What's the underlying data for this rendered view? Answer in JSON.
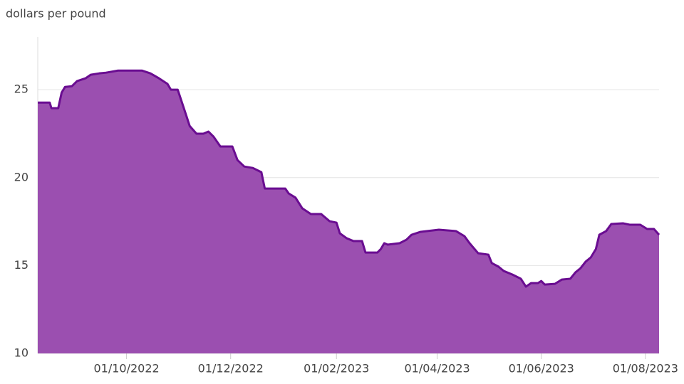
{
  "chart_data": {
    "type": "area",
    "y_axis_label": "dollars per pound",
    "x": [
      "2022-08-10",
      "2022-08-17",
      "2022-08-18",
      "2022-08-22",
      "2022-08-24",
      "2022-08-26",
      "2022-08-30",
      "2022-09-02",
      "2022-09-07",
      "2022-09-10",
      "2022-09-15",
      "2022-09-19",
      "2022-09-26",
      "2022-10-10",
      "2022-10-15",
      "2022-10-20",
      "2022-10-25",
      "2022-10-27",
      "2022-10-31",
      "2022-11-04",
      "2022-11-07",
      "2022-11-11",
      "2022-11-15",
      "2022-11-18",
      "2022-11-21",
      "2022-11-25",
      "2022-12-02",
      "2022-12-05",
      "2022-12-09",
      "2022-12-14",
      "2022-12-19",
      "2022-12-21",
      "2023-01-02",
      "2023-01-04",
      "2023-01-08",
      "2023-01-12",
      "2023-01-17",
      "2023-01-23",
      "2023-01-28",
      "2023-02-01",
      "2023-02-03",
      "2023-02-07",
      "2023-02-11",
      "2023-02-16",
      "2023-02-18",
      "2023-02-25",
      "2023-02-27",
      "2023-03-01",
      "2023-03-03",
      "2023-03-10",
      "2023-03-14",
      "2023-03-17",
      "2023-03-22",
      "2023-04-02",
      "2023-04-12",
      "2023-04-17",
      "2023-04-20",
      "2023-04-25",
      "2023-05-01",
      "2023-05-03",
      "2023-05-07",
      "2023-05-10",
      "2023-05-15",
      "2023-05-20",
      "2023-05-23",
      "2023-05-26",
      "2023-05-30",
      "2023-06-01",
      "2023-06-03",
      "2023-06-09",
      "2023-06-13",
      "2023-06-18",
      "2023-06-21",
      "2023-06-24",
      "2023-06-27",
      "2023-06-30",
      "2023-07-03",
      "2023-07-05",
      "2023-07-09",
      "2023-07-12",
      "2023-07-19",
      "2023-07-23",
      "2023-07-29",
      "2023-08-02",
      "2023-08-06",
      "2023-08-09"
    ],
    "series": [
      {
        "color": "#9b4fb0",
        "line_color": "#6a0d91",
        "values": [
          24.27,
          24.27,
          23.95,
          23.95,
          24.84,
          25.16,
          25.2,
          25.49,
          25.65,
          25.85,
          25.93,
          25.97,
          26.09,
          26.09,
          25.93,
          25.65,
          25.33,
          25.0,
          25.0,
          23.83,
          22.94,
          22.5,
          22.5,
          22.62,
          22.33,
          21.77,
          21.77,
          21.0,
          20.63,
          20.55,
          20.31,
          19.38,
          19.38,
          19.1,
          18.86,
          18.25,
          17.93,
          17.93,
          17.52,
          17.44,
          16.83,
          16.55,
          16.39,
          16.39,
          15.74,
          15.74,
          15.94,
          16.27,
          16.19,
          16.27,
          16.47,
          16.75,
          16.91,
          17.04,
          16.96,
          16.67,
          16.27,
          15.7,
          15.62,
          15.14,
          14.93,
          14.69,
          14.49,
          14.25,
          13.8,
          14.0,
          14.0,
          14.12,
          13.92,
          13.96,
          14.2,
          14.25,
          14.61,
          14.85,
          15.22,
          15.46,
          15.94,
          16.75,
          16.96,
          17.36,
          17.4,
          17.32,
          17.32,
          17.08,
          17.08,
          16.75
        ]
      }
    ],
    "xlim": [
      "2022-08-10",
      "2023-08-09"
    ],
    "xticks": [
      {
        "value": "2022-10-01",
        "label": "01/10/2022"
      },
      {
        "value": "2022-12-01",
        "label": "01/12/2022"
      },
      {
        "value": "2023-02-01",
        "label": "01/02/2023"
      },
      {
        "value": "2023-04-01",
        "label": "01/04/2023"
      },
      {
        "value": "2023-06-01",
        "label": "01/06/2023"
      },
      {
        "value": "2023-08-01",
        "label": "01/08/2023"
      }
    ],
    "ylim": [
      10,
      28
    ],
    "yticks": [
      10,
      15,
      20,
      25
    ],
    "grid": true
  }
}
